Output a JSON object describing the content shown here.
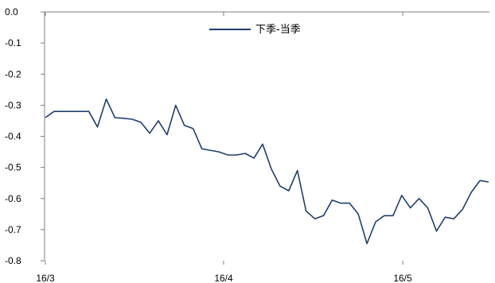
{
  "chart_data": {
    "type": "line",
    "y_ticks": [
      "0.0",
      "-0.1",
      "-0.2",
      "-0.3",
      "-0.4",
      "-0.5",
      "-0.6",
      "-0.7",
      "-0.8"
    ],
    "ylim": [
      -0.8,
      0.0
    ],
    "x_ticks": [
      "16/3",
      "16/4",
      "16/5"
    ],
    "grid": false,
    "legend_position": "top-center",
    "series": [
      {
        "name": "下季-当季",
        "color": "#1f3f6e",
        "values": [
          -0.34,
          -0.32,
          -0.32,
          -0.32,
          -0.32,
          -0.32,
          -0.37,
          -0.28,
          -0.34,
          -0.342,
          -0.345,
          -0.355,
          -0.39,
          -0.35,
          -0.395,
          -0.3,
          -0.365,
          -0.375,
          -0.44,
          -0.445,
          -0.45,
          -0.46,
          -0.46,
          -0.455,
          -0.47,
          -0.425,
          -0.505,
          -0.56,
          -0.575,
          -0.51,
          -0.64,
          -0.665,
          -0.655,
          -0.605,
          -0.615,
          -0.615,
          -0.65,
          -0.745,
          -0.675,
          -0.655,
          -0.655,
          -0.59,
          -0.63,
          -0.6,
          -0.63,
          -0.705,
          -0.66,
          -0.665,
          -0.635,
          -0.58,
          -0.542,
          -0.547
        ]
      }
    ]
  }
}
